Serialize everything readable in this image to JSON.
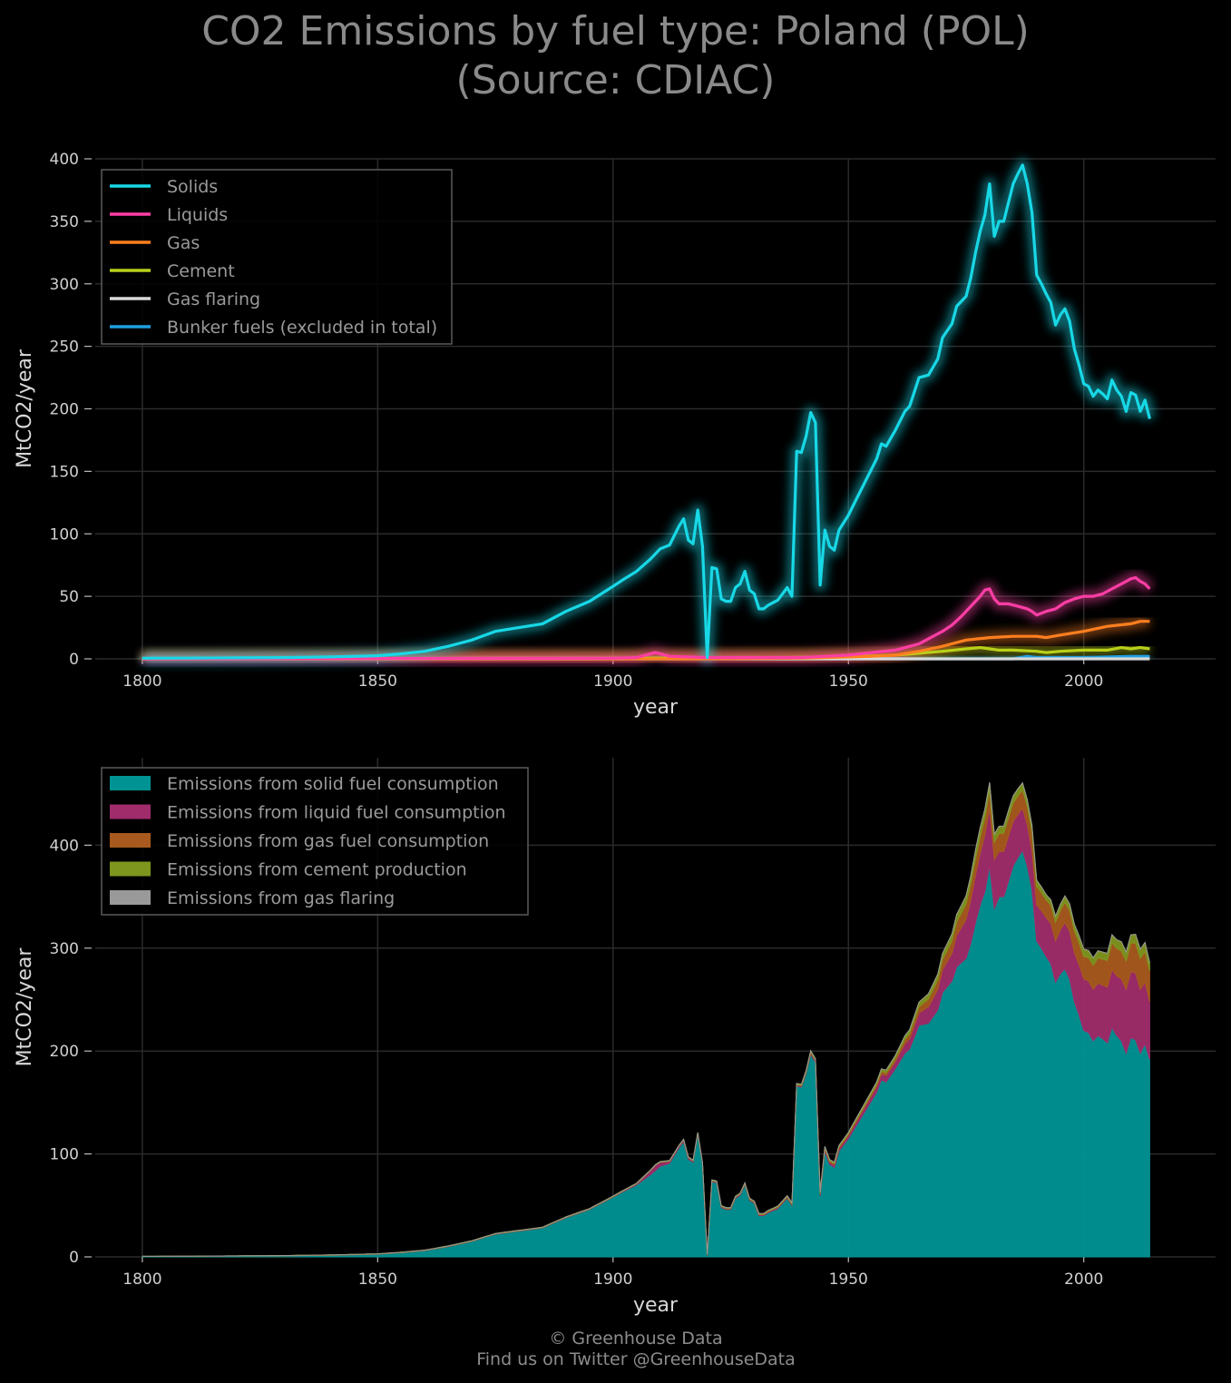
{
  "title": {
    "line1": "CO2 Emissions by fuel type: Poland (POL)",
    "line2": "(Source: CDIAC)"
  },
  "footer": {
    "line1": "© Greenhouse Data",
    "line2": "Find us on Twitter @GreenhouseData"
  },
  "chart_data": [
    {
      "type": "line",
      "xlabel": "year",
      "ylabel": "MtCO2/year",
      "xlim": [
        1790,
        2028
      ],
      "ylim": [
        0,
        400
      ],
      "xticks": [
        1800,
        1850,
        1900,
        1950,
        2000
      ],
      "yticks": [
        0,
        50,
        100,
        150,
        200,
        250,
        300,
        350,
        400
      ],
      "grid": true,
      "legend_position": "top-left",
      "glow": true,
      "series": [
        {
          "name": "Solids",
          "color": "#18d8e6",
          "points": [
            [
              1800,
              0.5
            ],
            [
              1810,
              0.6
            ],
            [
              1820,
              0.8
            ],
            [
              1830,
              1.0
            ],
            [
              1840,
              1.5
            ],
            [
              1850,
              2.5
            ],
            [
              1855,
              4
            ],
            [
              1860,
              6
            ],
            [
              1865,
              10
            ],
            [
              1870,
              15
            ],
            [
              1875,
              22
            ],
            [
              1880,
              25
            ],
            [
              1885,
              28
            ],
            [
              1890,
              38
            ],
            [
              1895,
              46
            ],
            [
              1900,
              58
            ],
            [
              1902,
              63
            ],
            [
              1905,
              70
            ],
            [
              1908,
              80
            ],
            [
              1910,
              88
            ],
            [
              1912,
              91
            ],
            [
              1914,
              106
            ],
            [
              1915,
              112
            ],
            [
              1916,
              95
            ],
            [
              1917,
              92
            ],
            [
              1918,
              119
            ],
            [
              1919,
              90
            ],
            [
              1920,
              1
            ],
            [
              1921,
              73
            ],
            [
              1922,
              72
            ],
            [
              1923,
              48
            ],
            [
              1924,
              46
            ],
            [
              1925,
              46
            ],
            [
              1926,
              57
            ],
            [
              1927,
              60
            ],
            [
              1928,
              70
            ],
            [
              1929,
              55
            ],
            [
              1930,
              52
            ],
            [
              1931,
              40
            ],
            [
              1932,
              40
            ],
            [
              1933,
              43
            ],
            [
              1935,
              47
            ],
            [
              1937,
              57
            ],
            [
              1938,
              50
            ],
            [
              1939,
              166
            ],
            [
              1940,
              165
            ],
            [
              1941,
              178
            ],
            [
              1942,
              197
            ],
            [
              1943,
              189
            ],
            [
              1944,
              59
            ],
            [
              1945,
              103
            ],
            [
              1946,
              90
            ],
            [
              1947,
              87
            ],
            [
              1948,
              103
            ],
            [
              1950,
              115
            ],
            [
              1952,
              130
            ],
            [
              1954,
              145
            ],
            [
              1956,
              160
            ],
            [
              1957,
              172
            ],
            [
              1958,
              170
            ],
            [
              1960,
              183
            ],
            [
              1962,
              198
            ],
            [
              1963,
              202
            ],
            [
              1965,
              225
            ],
            [
              1967,
              227
            ],
            [
              1969,
              240
            ],
            [
              1970,
              257
            ],
            [
              1972,
              268
            ],
            [
              1973,
              282
            ],
            [
              1975,
              290
            ],
            [
              1976,
              305
            ],
            [
              1977,
              325
            ],
            [
              1978,
              342
            ],
            [
              1979,
              355
            ],
            [
              1980,
              380
            ],
            [
              1981,
              338
            ],
            [
              1982,
              350
            ],
            [
              1983,
              350
            ],
            [
              1984,
              365
            ],
            [
              1985,
              380
            ],
            [
              1986,
              388
            ],
            [
              1987,
              395
            ],
            [
              1988,
              380
            ],
            [
              1989,
              357
            ],
            [
              1990,
              307
            ],
            [
              1991,
              300
            ],
            [
              1992,
              292
            ],
            [
              1993,
              285
            ],
            [
              1994,
              267
            ],
            [
              1995,
              275
            ],
            [
              1996,
              280
            ],
            [
              1997,
              270
            ],
            [
              1998,
              248
            ],
            [
              1999,
              235
            ],
            [
              2000,
              220
            ],
            [
              2001,
              218
            ],
            [
              2002,
              210
            ],
            [
              2003,
              215
            ],
            [
              2004,
              212
            ],
            [
              2005,
              208
            ],
            [
              2006,
              223
            ],
            [
              2007,
              215
            ],
            [
              2008,
              210
            ],
            [
              2009,
              198
            ],
            [
              2010,
              213
            ],
            [
              2011,
              211
            ],
            [
              2012,
              198
            ],
            [
              2013,
              207
            ],
            [
              2014,
              192
            ]
          ]
        },
        {
          "name": "Liquids",
          "color": "#ff3ea5",
          "points": [
            [
              1800,
              0
            ],
            [
              1900,
              0.5
            ],
            [
              1905,
              1
            ],
            [
              1909,
              5
            ],
            [
              1912,
              2
            ],
            [
              1920,
              1
            ],
            [
              1930,
              1
            ],
            [
              1940,
              1
            ],
            [
              1950,
              3
            ],
            [
              1955,
              5
            ],
            [
              1960,
              7
            ],
            [
              1965,
              12
            ],
            [
              1968,
              18
            ],
            [
              1970,
              22
            ],
            [
              1972,
              27
            ],
            [
              1974,
              34
            ],
            [
              1976,
              42
            ],
            [
              1978,
              50
            ],
            [
              1979,
              55
            ],
            [
              1980,
              56
            ],
            [
              1981,
              48
            ],
            [
              1982,
              44
            ],
            [
              1984,
              44
            ],
            [
              1986,
              42
            ],
            [
              1988,
              40
            ],
            [
              1989,
              38
            ],
            [
              1990,
              35
            ],
            [
              1992,
              38
            ],
            [
              1994,
              40
            ],
            [
              1996,
              45
            ],
            [
              1998,
              48
            ],
            [
              2000,
              50
            ],
            [
              2002,
              50
            ],
            [
              2004,
              52
            ],
            [
              2006,
              56
            ],
            [
              2008,
              60
            ],
            [
              2010,
              64
            ],
            [
              2011,
              65
            ],
            [
              2012,
              62
            ],
            [
              2013,
              60
            ],
            [
              2014,
              56
            ]
          ]
        },
        {
          "name": "Gas",
          "color": "#ff7f1f",
          "points": [
            [
              1800,
              0
            ],
            [
              1920,
              0
            ],
            [
              1940,
              0.5
            ],
            [
              1955,
              2
            ],
            [
              1960,
              3
            ],
            [
              1965,
              6
            ],
            [
              1970,
              10
            ],
            [
              1975,
              15
            ],
            [
              1980,
              17
            ],
            [
              1985,
              18
            ],
            [
              1990,
              18
            ],
            [
              1992,
              17
            ],
            [
              1995,
              19
            ],
            [
              2000,
              22
            ],
            [
              2005,
              26
            ],
            [
              2010,
              28
            ],
            [
              2012,
              30
            ],
            [
              2014,
              30
            ]
          ]
        },
        {
          "name": "Cement",
          "color": "#b8d01a",
          "points": [
            [
              1800,
              0
            ],
            [
              1900,
              0.5
            ],
            [
              1930,
              0.8
            ],
            [
              1950,
              1.5
            ],
            [
              1960,
              3
            ],
            [
              1970,
              6
            ],
            [
              1975,
              8
            ],
            [
              1978,
              9
            ],
            [
              1980,
              8
            ],
            [
              1982,
              7
            ],
            [
              1985,
              7
            ],
            [
              1990,
              6
            ],
            [
              1992,
              5
            ],
            [
              1995,
              6
            ],
            [
              2000,
              7
            ],
            [
              2005,
              7
            ],
            [
              2008,
              9
            ],
            [
              2010,
              8
            ],
            [
              2012,
              9
            ],
            [
              2014,
              8
            ]
          ]
        },
        {
          "name": "Gas flaring",
          "color": "#d9d9d9",
          "points": [
            [
              1800,
              0
            ],
            [
              2014,
              0
            ]
          ]
        },
        {
          "name": "Bunker fuels (excluded in total)",
          "color": "#1f9fe0",
          "points": [
            [
              1800,
              0
            ],
            [
              1985,
              0
            ],
            [
              1988,
              2
            ],
            [
              1990,
              1
            ],
            [
              2000,
              1
            ],
            [
              2010,
              2
            ],
            [
              2014,
              2
            ]
          ]
        }
      ]
    },
    {
      "type": "area",
      "stacked": true,
      "xlabel": "year",
      "ylabel": "MtCO2/year",
      "xlim": [
        1790,
        2028
      ],
      "ylim": [
        0,
        485
      ],
      "xticks": [
        1800,
        1850,
        1900,
        1950,
        2000
      ],
      "yticks": [
        0,
        100,
        200,
        300,
        400
      ],
      "grid": true,
      "legend_position": "top-left",
      "series": [
        {
          "name": "Emissions from solid fuel consumption",
          "color": "#009393",
          "ref": "Solids"
        },
        {
          "name": "Emissions from liquid fuel consumption",
          "color": "#a02c6c",
          "ref": "Liquids"
        },
        {
          "name": "Emissions from gas fuel consumption",
          "color": "#a85a1e",
          "ref": "Gas"
        },
        {
          "name": "Emissions from cement production",
          "color": "#7f961e",
          "ref": "Cement"
        },
        {
          "name": "Emissions from gas flaring",
          "color": "#999999",
          "ref": "Gas flaring"
        }
      ]
    }
  ]
}
